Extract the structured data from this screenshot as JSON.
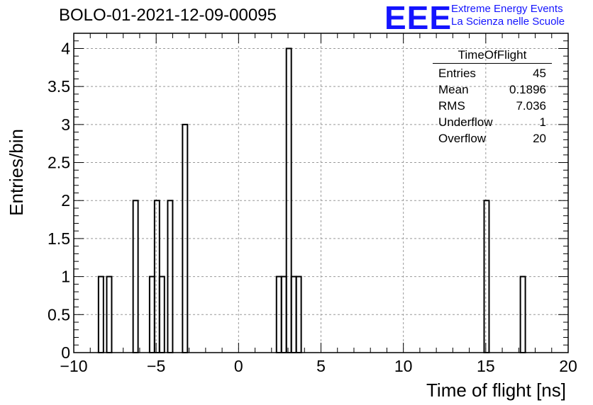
{
  "title": "BOLO-01-2021-12-09-00095",
  "logo": {
    "mark": "EEE",
    "line1": "Extreme Energy Events",
    "line2": "La Scienza nelle Scuole",
    "color": "#1414ff"
  },
  "stats": {
    "name": "TimeOfFlight",
    "rows": [
      {
        "label": "Entries",
        "value": "45"
      },
      {
        "label": "Mean",
        "value": "0.1896"
      },
      {
        "label": "RMS",
        "value": "7.036"
      },
      {
        "label": "Underflow",
        "value": "1"
      },
      {
        "label": "Overflow",
        "value": "20"
      }
    ]
  },
  "chart_data": {
    "type": "bar",
    "histogram": true,
    "xlabel": "Time of flight [ns]",
    "ylabel": "Entries/bin",
    "xlim": [
      -10,
      20
    ],
    "ylim": [
      0,
      4.2
    ],
    "xticks": [
      -10,
      -5,
      0,
      5,
      10,
      15,
      20
    ],
    "xtick_labels": [
      "−10",
      "−5",
      "0",
      "5",
      "10",
      "15",
      "20"
    ],
    "yticks": [
      0,
      0.5,
      1,
      1.5,
      2,
      2.5,
      3,
      3.5,
      4
    ],
    "ytick_labels": [
      "0",
      "0.5",
      "1",
      "1.5",
      "2",
      "2.5",
      "3",
      "3.5",
      "4"
    ],
    "grid": true,
    "bin_width": 0.3,
    "bins": [
      {
        "x0": -8.5,
        "x1": -8.2,
        "count": 1
      },
      {
        "x0": -8.0,
        "x1": -7.7,
        "count": 1
      },
      {
        "x0": -6.4,
        "x1": -6.1,
        "count": 2
      },
      {
        "x0": -5.4,
        "x1": -5.1,
        "count": 1
      },
      {
        "x0": -5.1,
        "x1": -4.8,
        "count": 2
      },
      {
        "x0": -4.8,
        "x1": -4.5,
        "count": 1
      },
      {
        "x0": -4.3,
        "x1": -4.0,
        "count": 2
      },
      {
        "x0": -3.4,
        "x1": -3.1,
        "count": 3
      },
      {
        "x0": 2.3,
        "x1": 2.6,
        "count": 1
      },
      {
        "x0": 2.6,
        "x1": 2.9,
        "count": 1
      },
      {
        "x0": 2.9,
        "x1": 3.2,
        "count": 4
      },
      {
        "x0": 3.2,
        "x1": 3.5,
        "count": 1
      },
      {
        "x0": 3.5,
        "x1": 3.8,
        "count": 1
      },
      {
        "x0": 14.9,
        "x1": 15.2,
        "count": 2
      },
      {
        "x0": 17.1,
        "x1": 17.4,
        "count": 1
      }
    ]
  }
}
